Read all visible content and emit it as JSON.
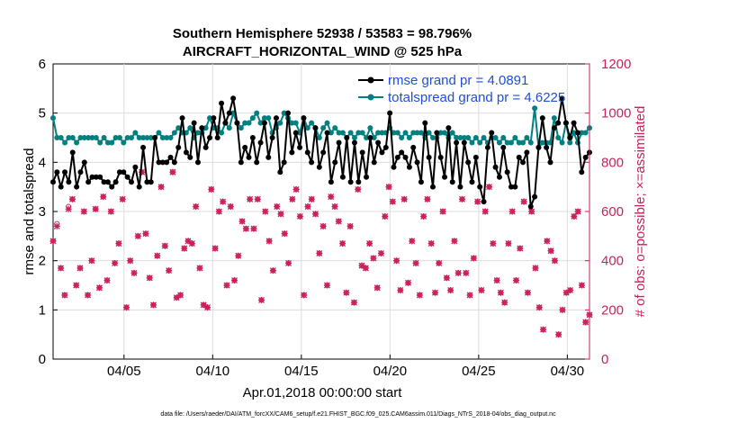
{
  "chart_data": {
    "type": "line",
    "title_line1": "Southern Hemisphere 52938 / 53583 = 98.796%",
    "title_line2": "AIRCRAFT_HORIZONTAL_WIND @ 525 hPa",
    "xlabel": "Apr.01,2018 00:00:00 start",
    "ylabel_left": "rmse and totalspread",
    "ylabel_right": "# of obs: o=possible; ×=assimilated",
    "footer": "data file: /Users/raeder/DAI/ATM_forcXX/CAM6_setup/f.e21.FHIST_BGC.f09_025.CAM6assim.011/Diags_NTrS_2018-04/obs_diag_output.nc",
    "x_range_days": [
      1.0,
      31.25
    ],
    "x_ticks": [
      {
        "day": 5,
        "label": "04/05"
      },
      {
        "day": 10,
        "label": "04/10"
      },
      {
        "day": 15,
        "label": "04/15"
      },
      {
        "day": 20,
        "label": "04/20"
      },
      {
        "day": 25,
        "label": "04/25"
      },
      {
        "day": 30,
        "label": "04/30"
      }
    ],
    "y_left_range": [
      0,
      6
    ],
    "y_left_ticks": [
      "0",
      "1",
      "2",
      "3",
      "4",
      "5",
      "6"
    ],
    "y_right_range": [
      0,
      1200
    ],
    "y_right_ticks": [
      "0",
      "200",
      "400",
      "600",
      "800",
      "1000",
      "1200"
    ],
    "colors": {
      "rmse": "#000000",
      "spread": "#008080",
      "obs": "#cc1f5a",
      "legend_text": "#1f4fd6"
    },
    "series": [
      {
        "name": "rmse grand pr = 4.0891",
        "axis": "left",
        "values": [
          3.6,
          3.8,
          3.5,
          3.8,
          3.6,
          4.2,
          3.5,
          3.8,
          4.0,
          3.6,
          3.7,
          3.7,
          3.7,
          3.6,
          3.6,
          3.5,
          3.6,
          3.8,
          3.8,
          3.7,
          3.6,
          3.9,
          3.5,
          4.3,
          3.6,
          3.6,
          4.5,
          4.0,
          4.0,
          4.0,
          4.1,
          4.0,
          4.3,
          4.9,
          4.2,
          4.1,
          4.8,
          4.0,
          4.7,
          4.3,
          4.5,
          4.9,
          4.5,
          5.2,
          4.8,
          5.0,
          5.3,
          4.8,
          4.0,
          4.3,
          4.1,
          4.5,
          4.0,
          4.4,
          4.8,
          4.1,
          4.5,
          4.9,
          3.8,
          4.0,
          5.0,
          4.2,
          4.6,
          4.3,
          4.9,
          4.2,
          4.0,
          4.7,
          3.9,
          4.2,
          4.6,
          3.6,
          4.0,
          4.4,
          3.7,
          4.5,
          3.6,
          4.4,
          3.6,
          4.2,
          3.7,
          4.5,
          4.0,
          4.4,
          4.2,
          4.3,
          5.0,
          3.9,
          4.1,
          4.2,
          4.1,
          3.9,
          4.3,
          4.0,
          3.6,
          4.8,
          4.1,
          3.5,
          4.6,
          4.1,
          3.7,
          4.7,
          3.6,
          4.4,
          3.5,
          4.4,
          4.0,
          3.6,
          4.1,
          3.5,
          3.2,
          4.3,
          4.6,
          3.9,
          3.7,
          4.3,
          3.8,
          3.5,
          3.5,
          4.1,
          4.0,
          4.2,
          3.1,
          3.3,
          4.3,
          4.9,
          4.3,
          4.0,
          4.7,
          4.8,
          5.3,
          4.8,
          4.5,
          4.8,
          4.6,
          3.8,
          4.1,
          4.2
        ]
      },
      {
        "name": "totalspread grand pr = 4.6225",
        "axis": "left",
        "values": [
          4.9,
          4.5,
          4.5,
          4.4,
          4.5,
          4.5,
          4.4,
          4.5,
          4.5,
          4.5,
          4.5,
          4.5,
          4.4,
          4.5,
          4.4,
          4.4,
          4.5,
          4.5,
          4.4,
          4.5,
          4.5,
          4.6,
          4.5,
          4.5,
          4.5,
          4.5,
          4.5,
          4.6,
          4.5,
          4.5,
          4.5,
          4.6,
          4.7,
          4.6,
          4.6,
          4.7,
          4.5,
          4.6,
          4.6,
          4.7,
          4.9,
          4.7,
          4.7,
          4.6,
          4.8,
          4.7,
          5.0,
          4.8,
          4.7,
          4.8,
          4.8,
          4.9,
          5.0,
          4.8,
          4.9,
          4.9,
          4.6,
          4.7,
          4.8,
          5.0,
          4.9,
          4.8,
          4.8,
          4.6,
          4.9,
          4.7,
          4.8,
          4.7,
          4.5,
          4.7,
          4.8,
          4.6,
          4.7,
          4.6,
          4.6,
          4.5,
          4.6,
          4.5,
          4.6,
          4.6,
          4.5,
          4.7,
          4.5,
          4.6,
          4.6,
          4.6,
          4.7,
          4.6,
          4.6,
          4.5,
          4.6,
          4.5,
          4.6,
          4.6,
          4.6,
          4.5,
          4.6,
          4.5,
          4.5,
          4.6,
          4.6,
          4.5,
          4.6,
          4.5,
          4.5,
          4.5,
          4.5,
          4.4,
          4.5,
          4.4,
          4.5,
          4.4,
          4.5,
          4.5,
          4.4,
          4.5,
          4.4,
          4.4,
          4.5,
          4.4,
          4.4,
          4.5,
          4.4,
          5.1,
          4.3,
          4.4,
          4.4,
          4.4,
          4.9,
          4.5,
          4.4,
          4.8,
          4.4,
          4.6,
          4.4,
          4.6,
          4.6,
          4.7
        ]
      },
      {
        "name": "possible obs",
        "axis": "right",
        "values": [
          480,
          550,
          370,
          260,
          620,
          650,
          300,
          370,
          600,
          260,
          400,
          610,
          290,
          660,
          320,
          600,
          390,
          470,
          650,
          210,
          400,
          350,
          500,
          760,
          510,
          330,
          220,
          420,
          700,
          460,
          360,
          760,
          250,
          260,
          450,
          480,
          470,
          620,
          370,
          220,
          210,
          690,
          450,
          600,
          640,
          300,
          620,
          320,
          420,
          560,
          530,
          650,
          530,
          650,
          240,
          600,
          480,
          360,
          620,
          590,
          510,
          390,
          650,
          690,
          580,
          260,
          620,
          650,
          590,
          430,
          540,
          300,
          660,
          620,
          560,
          470,
          270,
          540,
          230,
          690,
          380,
          370,
          470,
          410,
          290,
          430,
          580,
          700,
          640,
          400,
          280,
          650,
          310,
          480,
          390,
          260,
          580,
          650,
          470,
          270,
          390,
          600,
          330,
          280,
          480,
          350,
          650,
          350,
          260,
          410,
          640,
          280,
          600,
          700,
          470,
          320,
          270,
          230,
          470,
          600,
          320,
          450,
          640,
          270,
          600,
          370,
          210,
          120,
          480,
          440,
          400,
          100,
          200,
          270,
          280,
          580,
          600,
          300,
          150,
          180
        ]
      },
      {
        "name": "assimilated obs",
        "axis": "right",
        "values": [
          480,
          540,
          370,
          260,
          610,
          650,
          300,
          370,
          600,
          260,
          400,
          610,
          290,
          660,
          320,
          600,
          390,
          470,
          650,
          210,
          400,
          350,
          500,
          760,
          510,
          330,
          220,
          420,
          700,
          460,
          360,
          760,
          250,
          260,
          450,
          480,
          470,
          620,
          370,
          220,
          210,
          690,
          450,
          600,
          640,
          300,
          620,
          320,
          420,
          560,
          530,
          650,
          530,
          650,
          240,
          600,
          480,
          360,
          620,
          590,
          510,
          390,
          650,
          690,
          580,
          260,
          620,
          650,
          590,
          430,
          540,
          300,
          660,
          620,
          560,
          470,
          270,
          540,
          230,
          690,
          380,
          370,
          470,
          410,
          290,
          430,
          580,
          700,
          640,
          400,
          280,
          650,
          310,
          480,
          390,
          260,
          580,
          650,
          470,
          270,
          390,
          600,
          330,
          280,
          480,
          350,
          650,
          350,
          260,
          410,
          640,
          280,
          600,
          700,
          470,
          320,
          270,
          230,
          470,
          600,
          320,
          450,
          640,
          270,
          600,
          370,
          210,
          120,
          480,
          440,
          400,
          100,
          200,
          270,
          280,
          580,
          600,
          300,
          150,
          180
        ]
      }
    ],
    "legend": {
      "rmse_label": "rmse grand pr = 4.0891",
      "spread_label": "totalspread grand pr = 4.6225",
      "placement": "top-right"
    }
  }
}
